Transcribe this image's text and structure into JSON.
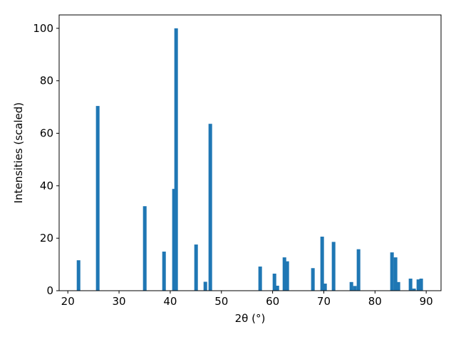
{
  "chart_data": {
    "type": "bar",
    "x_label": "2θ (°)",
    "y_label": "Intensities (scaled)",
    "x": [
      22.09,
      25.84,
      35.03,
      38.79,
      40.73,
      41.15,
      45.05,
      46.86,
      47.83,
      57.57,
      60.36,
      60.92,
      62.31,
      62.86,
      67.87,
      69.68,
      70.24,
      71.91,
      75.39,
      76.08,
      76.78,
      83.32,
      84.01,
      84.57,
      86.94,
      87.63,
      88.47,
      89.02
    ],
    "values": [
      11.6,
      70.4,
      32.2,
      14.9,
      38.8,
      100,
      17.6,
      3.4,
      63.6,
      9.2,
      6.5,
      1.9,
      12.7,
      11.2,
      8.6,
      20.6,
      2.7,
      18.6,
      3.3,
      1.8,
      15.8,
      14.6,
      12.7,
      3.3,
      4.6,
      0.8,
      4.3,
      4.6
    ],
    "color": "#1f77b4",
    "xlim": [
      18.3,
      92.9
    ],
    "xticks": [
      20,
      30,
      40,
      50,
      60,
      70,
      80,
      90
    ],
    "ylim": [
      0,
      105.1
    ],
    "yticks": [
      0,
      20,
      40,
      60,
      80,
      100
    ]
  }
}
